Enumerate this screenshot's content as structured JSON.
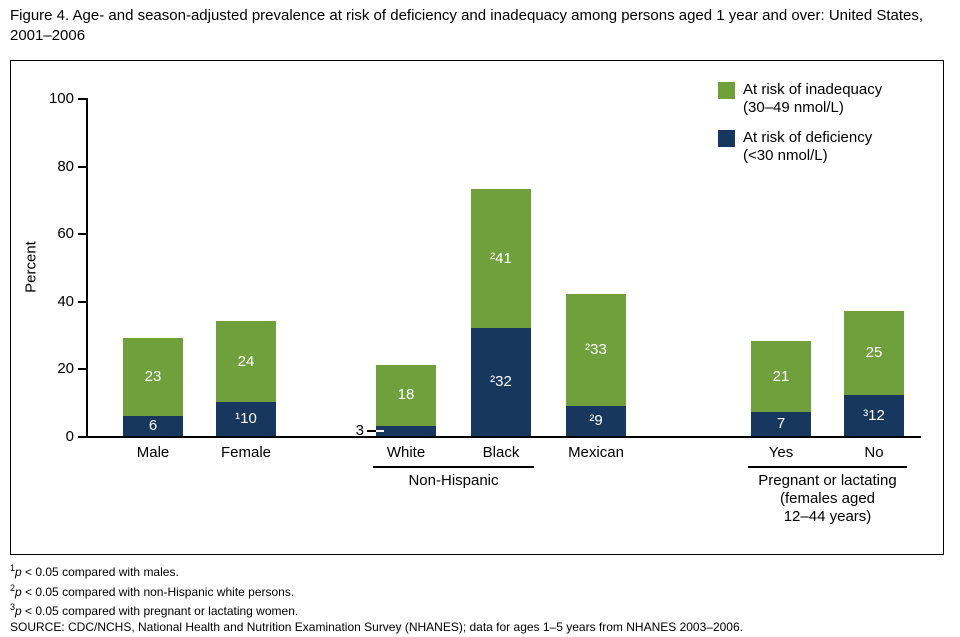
{
  "title": "Figure 4. Age- and season-adjusted prevalence at risk of deficiency and inadequacy among persons aged 1 year and over: United States, 2001–2006",
  "chart_data": {
    "type": "stacked-bar",
    "ylabel": "Percent",
    "ylim": [
      0,
      100
    ],
    "yticks": [
      0,
      20,
      40,
      60,
      80,
      100
    ],
    "grid": false,
    "legend_position": "top-right",
    "categories": [
      "Male",
      "Female",
      "White",
      "Black",
      "Mexican",
      "Yes",
      "No"
    ],
    "series": [
      {
        "name": "At risk of deficiency (<30 nmol/L)",
        "key": "deficiency",
        "color": "#17375e",
        "values": [
          6,
          10,
          3,
          32,
          9,
          7,
          12
        ],
        "labels": [
          "6",
          "¹10",
          "3",
          "²32",
          "²9",
          "7",
          "³12"
        ]
      },
      {
        "name": "At risk of inadequacy (30–49 nmol/L)",
        "key": "inadequacy",
        "color": "#6fa03c",
        "values": [
          23,
          24,
          18,
          41,
          33,
          21,
          25
        ],
        "labels": [
          "23",
          "24",
          "18",
          "²41",
          "²33",
          "21",
          "25"
        ]
      }
    ],
    "outside_labels": [
      {
        "category": "White",
        "series": "deficiency"
      }
    ],
    "groups": [
      {
        "from": "White",
        "to": "Black",
        "label_lines": [
          "Non-Hispanic"
        ]
      },
      {
        "from": "Yes",
        "to": "No",
        "label_lines": [
          "Pregnant or lactating",
          "(females aged",
          "12–44 years)"
        ]
      }
    ]
  },
  "legend": {
    "items": [
      {
        "line1": "At risk of inadequacy",
        "line2": "(30–49 nmol/L)"
      },
      {
        "line1": "At risk of deficiency",
        "line2": "(<30 nmol/L)"
      }
    ]
  },
  "footnotes": [
    {
      "marker": "1",
      "p": "p",
      "rest": " < 0.05 compared with males."
    },
    {
      "marker": "2",
      "p": "p",
      "rest": " < 0.05 compared with non-Hispanic white persons."
    },
    {
      "marker": "3",
      "p": "p",
      "rest": " < 0.05 compared with pregnant or lactating women."
    }
  ],
  "source": "SOURCE: CDC/NCHS, National Health and Nutrition Examination Survey (NHANES); data for ages 1–5 years from NHANES 2003–2006."
}
